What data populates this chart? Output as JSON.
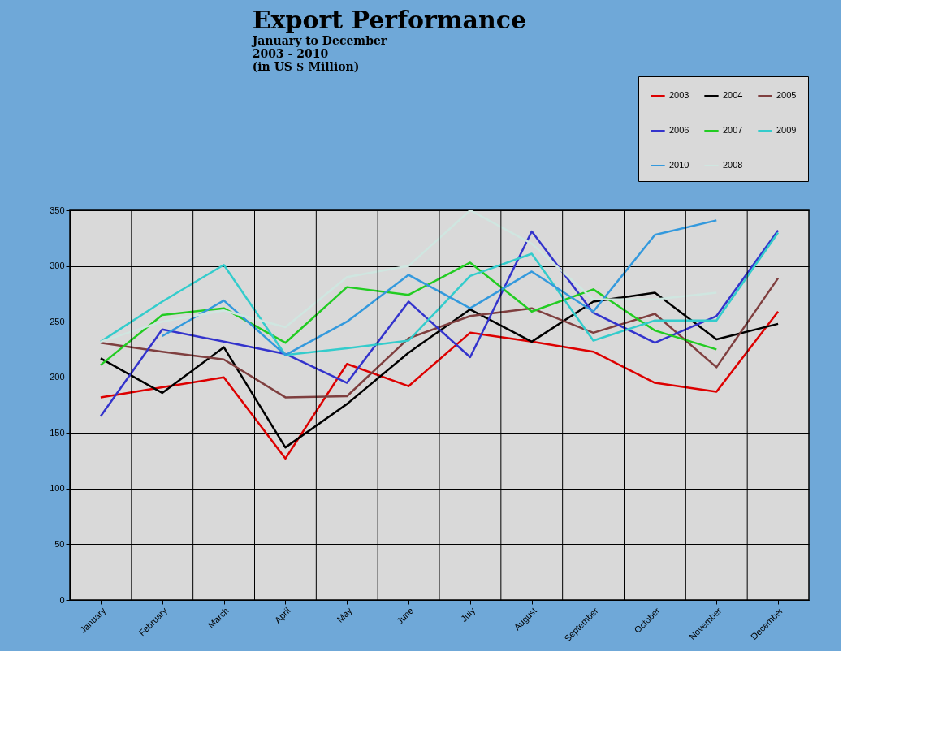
{
  "chart_data": {
    "type": "line",
    "title": "Export Performance",
    "subtitle": [
      "January to December",
      "2003 - 2010",
      "(in US $ Million)"
    ],
    "categories": [
      "January",
      "February",
      "March",
      "April",
      "May",
      "June",
      "July",
      "August",
      "September",
      "October",
      "November",
      "December"
    ],
    "series": [
      {
        "name": "2003",
        "color": "#dd0000",
        "values": [
          182,
          191,
          200,
          127,
          212,
          192,
          240,
          232,
          223,
          195,
          187,
          259
        ]
      },
      {
        "name": "2004",
        "color": "#000000",
        "values": [
          217,
          186,
          227,
          137,
          176,
          222,
          261,
          232,
          268,
          276,
          234,
          248
        ]
      },
      {
        "name": "2005",
        "color": "#7f3f3f",
        "values": [
          231,
          223,
          216,
          182,
          183,
          235,
          255,
          262,
          240,
          257,
          209,
          289
        ]
      },
      {
        "name": "2006",
        "color": "#3333cc",
        "values": [
          165,
          243,
          232,
          221,
          195,
          268,
          218,
          331,
          258,
          231,
          255,
          332
        ]
      },
      {
        "name": "2007",
        "color": "#22cc22",
        "values": [
          211,
          256,
          262,
          231,
          281,
          274,
          303,
          259,
          279,
          242,
          225,
          null
        ]
      },
      {
        "name": "2009",
        "color": "#33cccc",
        "values": [
          232,
          268,
          301,
          220,
          226,
          233,
          291,
          311,
          233,
          251,
          251,
          330
        ]
      },
      {
        "name": "2010",
        "color": "#3399dd",
        "values": [
          null,
          237,
          269,
          220,
          250,
          292,
          262,
          295,
          259,
          328,
          341,
          null
        ]
      },
      {
        "name": "2008",
        "color": "#cfe6e0",
        "values": [
          232,
          250,
          260,
          245,
          290,
          300,
          350,
          320,
          270,
          270,
          276,
          null
        ]
      }
    ],
    "ylim": [
      0,
      350
    ],
    "yticks": [
      0,
      50,
      100,
      150,
      200,
      250,
      300,
      350
    ],
    "grid": true,
    "legend": "top right",
    "marker": "none",
    "line_style": "solid"
  }
}
